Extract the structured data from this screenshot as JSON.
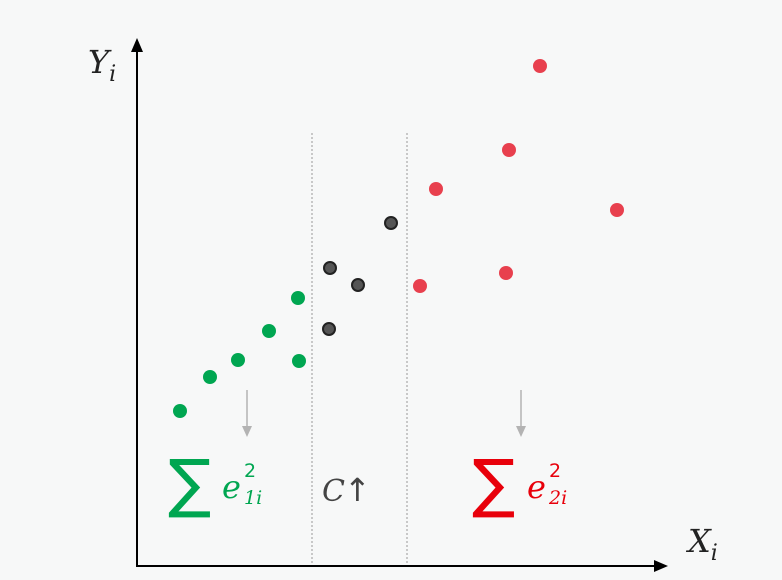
{
  "axes": {
    "y_label": {
      "base": "Y",
      "sub": "i"
    },
    "x_label": {
      "base": "X",
      "sub": "i"
    }
  },
  "groups": {
    "left": {
      "color": "#00a651",
      "points": [
        [
          180,
          411
        ],
        [
          210,
          377
        ],
        [
          238,
          360
        ],
        [
          269,
          331
        ],
        [
          298,
          298
        ],
        [
          299,
          361
        ]
      ]
    },
    "middle": {
      "color": "#555555",
      "stroke": "#222222",
      "points": [
        [
          330,
          268
        ],
        [
          358,
          285
        ],
        [
          391,
          223
        ],
        [
          329,
          329
        ]
      ]
    },
    "right": {
      "color": "#e8404e",
      "points": [
        [
          540,
          66
        ],
        [
          509,
          150
        ],
        [
          436,
          189
        ],
        [
          617,
          210
        ],
        [
          506,
          273
        ],
        [
          420,
          286
        ]
      ]
    }
  },
  "labels": {
    "left_sum": {
      "symbol": "∑",
      "base": "e",
      "sup": "2",
      "sub": "1i",
      "color": "#00a651"
    },
    "middle": {
      "text": "C",
      "arrow": "↑",
      "color": "#444444"
    },
    "right_sum": {
      "symbol": "∑",
      "base": "e",
      "sup": "2",
      "sub": "2i",
      "color": "#e8000b"
    }
  },
  "colors": {
    "axis": "#000000",
    "divider": "#999999",
    "down_arrow": "#b3b3b3"
  }
}
